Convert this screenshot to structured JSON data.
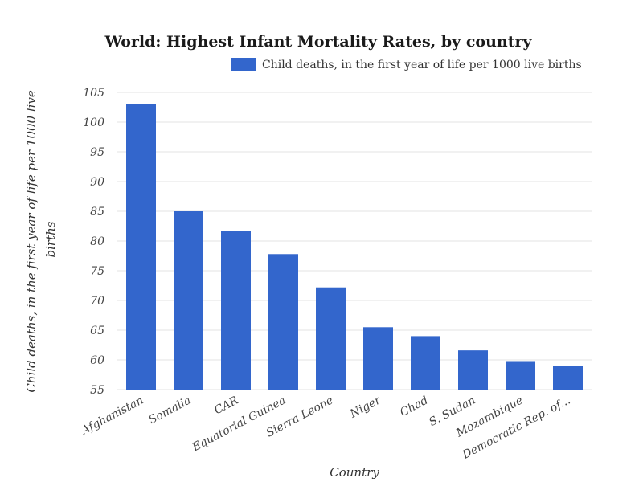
{
  "chart_data": {
    "type": "bar",
    "title": "World: Highest Infant Mortality Rates, by country",
    "legend_position": "top-right",
    "xlabel": "Country",
    "ylabel": "Child deaths, in the first year of life per 1000 live births",
    "categories": [
      "Afghanistan",
      "Somalia",
      "CAR",
      "Equatorial Guinea",
      "Sierra Leone",
      "Niger",
      "Chad",
      "S. Sudan",
      "Mozambique",
      "Democratic Rep. of..."
    ],
    "series": [
      {
        "name": "Child deaths, in the first year of life per 1000 live births",
        "color": "#3366cc",
        "values": [
          103.0,
          85.0,
          81.7,
          77.8,
          72.2,
          65.5,
          64.0,
          61.6,
          59.8,
          59.0
        ]
      }
    ],
    "ylim": [
      55,
      105
    ],
    "yticks": [
      55,
      60,
      65,
      70,
      75,
      80,
      85,
      90,
      95,
      100,
      105
    ],
    "grid": true
  }
}
